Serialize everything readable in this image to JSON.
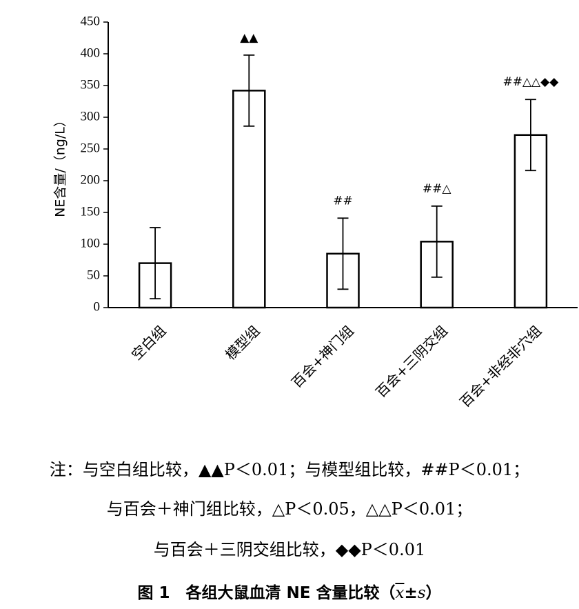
{
  "chart_data": {
    "type": "bar",
    "ylabel": "NE含量/（ng/L）",
    "ylim": [
      0,
      450
    ],
    "yticks": [
      0,
      50,
      100,
      150,
      200,
      250,
      300,
      350,
      400,
      450
    ],
    "categories": [
      "空白组",
      "模型组",
      "百会+神门组",
      "百会+三阴交组",
      "百会+非经非穴组"
    ],
    "values": [
      70,
      342,
      85,
      104,
      272
    ],
    "errors": [
      56,
      56,
      56,
      56,
      56
    ],
    "annotations": [
      "",
      "▲▲",
      "##",
      "##△",
      "##△△◆◆"
    ],
    "grid": false,
    "bar_fill": "#ffffff",
    "bar_stroke": "#000000"
  },
  "notes": {
    "line1": "注：与空白组比较，▲▲P＜0.01；与模型组比较，##P＜0.01；",
    "line2": "与百会＋神门组比较，△P＜0.05，△△P＜0.01；",
    "line3": "与百会＋三阴交组比较，◆◆P＜0.01"
  },
  "caption": {
    "text": "图 1　各组大鼠血清 NE 含量比较（",
    "xbar": "x",
    "pm": "±",
    "s": "s",
    "close": "）"
  }
}
